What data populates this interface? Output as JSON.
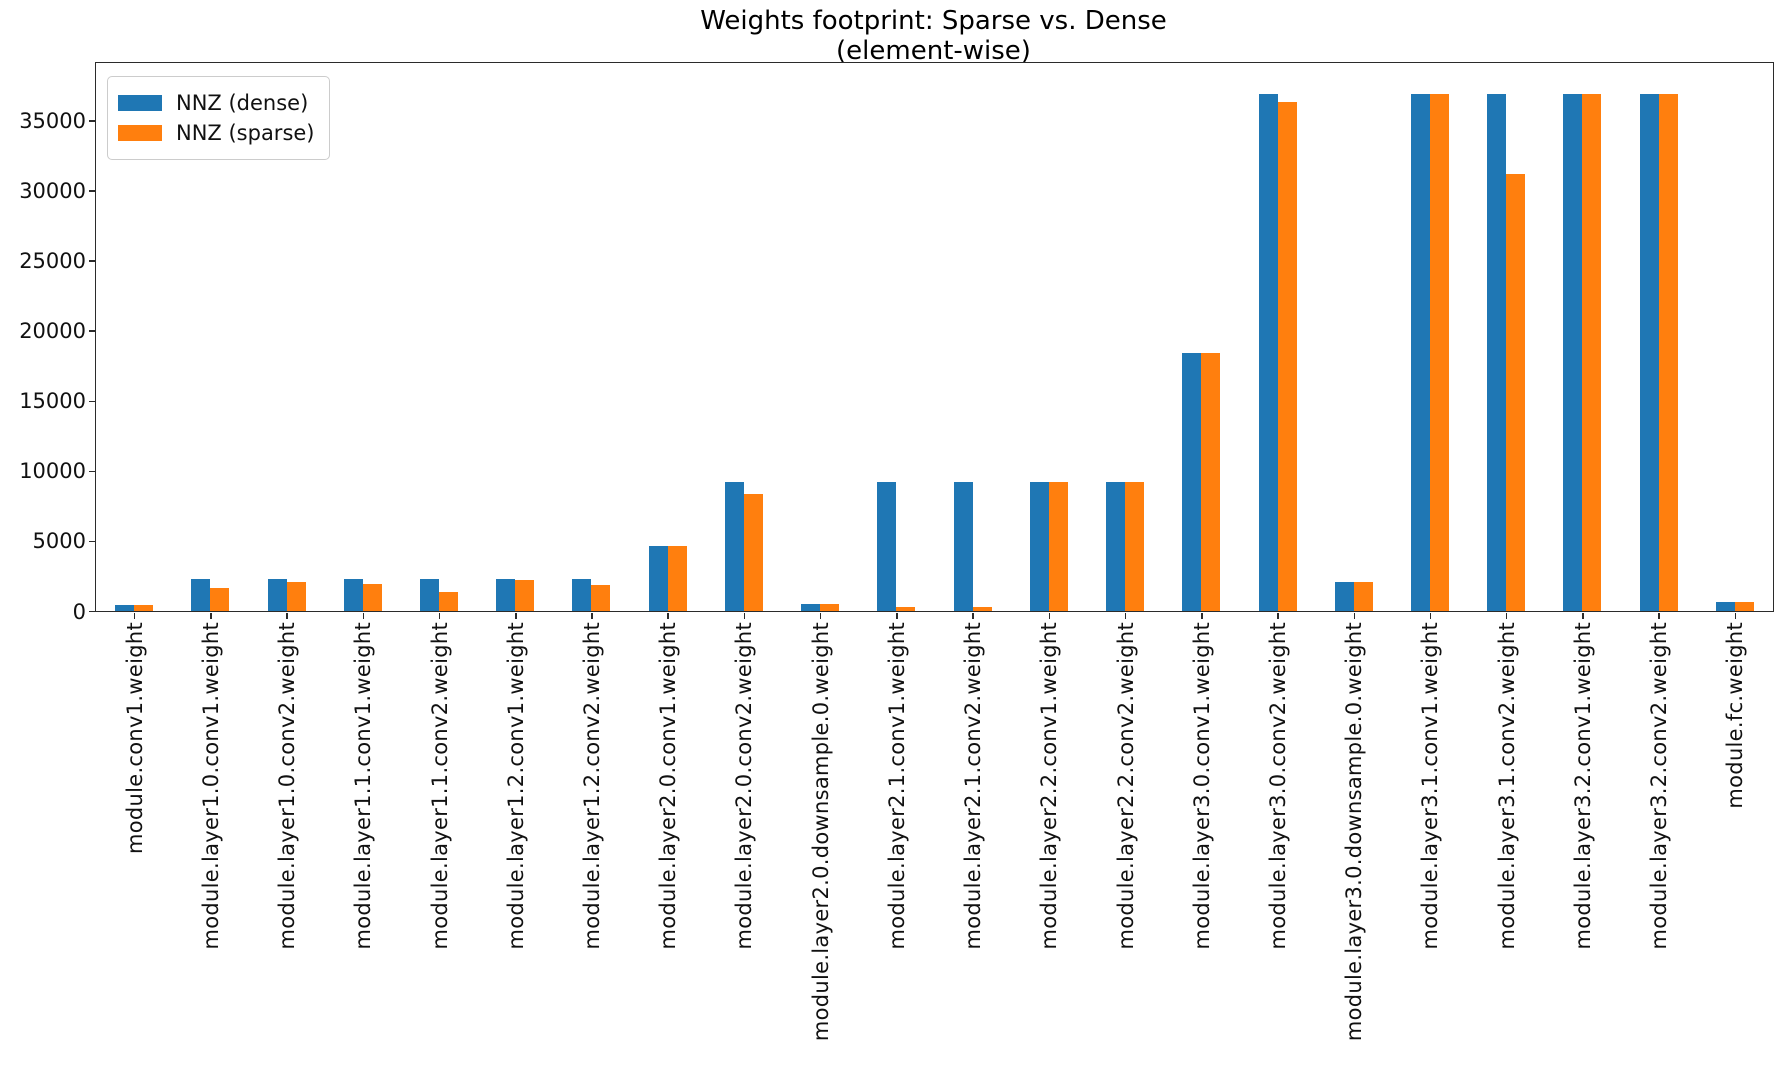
{
  "chart_data": {
    "type": "bar",
    "title": "Weights footprint: Sparse vs. Dense",
    "subtitle": "(element-wise)",
    "xlabel": "",
    "ylabel": "",
    "grid": false,
    "legend_position": "upper left",
    "bar_orientation": "vertical",
    "ylim": [
      0,
      39100
    ],
    "yticks": [
      0,
      5000,
      10000,
      15000,
      20000,
      25000,
      30000,
      35000
    ],
    "categories": [
      "module.conv1.weight",
      "module.layer1.0.conv1.weight",
      "module.layer1.0.conv2.weight",
      "module.layer1.1.conv1.weight",
      "module.layer1.1.conv2.weight",
      "module.layer1.2.conv1.weight",
      "module.layer1.2.conv2.weight",
      "module.layer2.0.conv1.weight",
      "module.layer2.0.conv2.weight",
      "module.layer2.0.downsample.0.weight",
      "module.layer2.1.conv1.weight",
      "module.layer2.1.conv2.weight",
      "module.layer2.2.conv1.weight",
      "module.layer2.2.conv2.weight",
      "module.layer3.0.conv1.weight",
      "module.layer3.0.conv2.weight",
      "module.layer3.0.downsample.0.weight",
      "module.layer3.1.conv1.weight",
      "module.layer3.1.conv2.weight",
      "module.layer3.2.conv1.weight",
      "module.layer3.2.conv2.weight",
      "module.fc.weight"
    ],
    "series": [
      {
        "name": "NNZ (dense)",
        "color": "#1f77b4",
        "values": [
          432,
          2304,
          2304,
          2304,
          2304,
          2304,
          2304,
          4608,
          9216,
          512,
          9216,
          9216,
          9216,
          9216,
          18432,
          36864,
          2048,
          36864,
          36864,
          36864,
          36864,
          640
        ]
      },
      {
        "name": "NNZ (sparse)",
        "color": "#ff7f0e",
        "values": [
          432,
          1650,
          2050,
          1900,
          1350,
          2190,
          1880,
          4608,
          8350,
          512,
          280,
          280,
          9216,
          9216,
          18432,
          36350,
          2048,
          36864,
          31200,
          36864,
          36864,
          640
        ]
      }
    ]
  }
}
